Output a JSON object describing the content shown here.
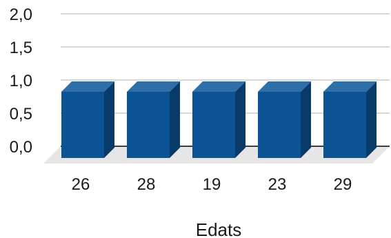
{
  "chart_data": {
    "type": "bar",
    "categories": [
      "26",
      "28",
      "19",
      "23",
      "29"
    ],
    "values": [
      1,
      1,
      1,
      1,
      1
    ],
    "xlabel": "Edats",
    "ylabel": "",
    "ylim": [
      0,
      2
    ],
    "yticks": [
      "0,0",
      "0,5",
      "1,0",
      "1,5",
      "2,0"
    ],
    "grid": true,
    "style": "3d",
    "colors": {
      "bar_front": "#0b5394",
      "bar_side": "#083b6a",
      "bar_top": "#2f6fa8",
      "grid": "#cccccc",
      "floor": "#e6e6e6",
      "axis": "#000000"
    }
  }
}
